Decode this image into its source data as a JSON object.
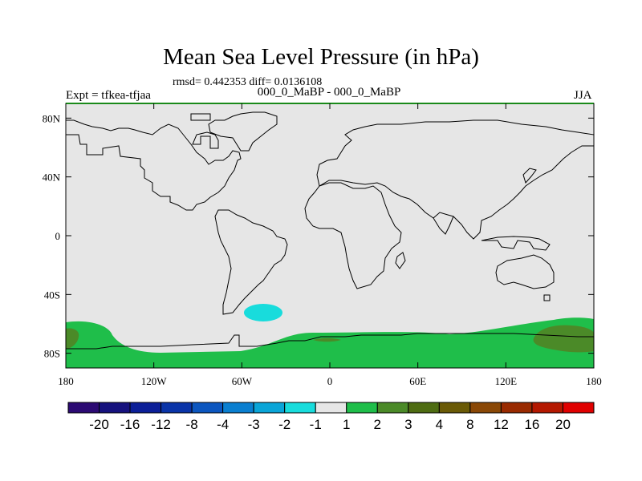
{
  "title": "Mean Sea Level Pressure (in hPa)",
  "stats": "rmsd= 0.442353 diff= 0.0136108",
  "left_label": "Expt = tfkea-tfjaa",
  "center_label": "000_0_MaBP - 000_0_MaBP",
  "right_label": "JJA",
  "map": {
    "projection": "cylindrical equidistant",
    "lon_range": [
      -180,
      180
    ],
    "lat_range": [
      -90,
      90
    ],
    "background_level": "-1 to 1",
    "x_ticks": [
      {
        "value": -180,
        "label": "180"
      },
      {
        "value": -120,
        "label": "120W"
      },
      {
        "value": -60,
        "label": "60W"
      },
      {
        "value": 0,
        "label": "0"
      },
      {
        "value": 60,
        "label": "60E"
      },
      {
        "value": 120,
        "label": "120E"
      },
      {
        "value": 180,
        "label": "180"
      }
    ],
    "y_ticks": [
      {
        "value": 80,
        "label": "80N"
      },
      {
        "value": 40,
        "label": "40N"
      },
      {
        "value": 0,
        "label": "0"
      },
      {
        "value": -40,
        "label": "40S"
      },
      {
        "value": -80,
        "label": "80S"
      }
    ]
  },
  "colorbar": {
    "colors": [
      "#2c0a73",
      "#16127e",
      "#0c1f98",
      "#0a34a8",
      "#0c56bf",
      "#0a7fd0",
      "#0aa5d8",
      "#18dcdc",
      "#e6e6e6",
      "#1fbe4a",
      "#4b8a28",
      "#4e6c12",
      "#6a5a06",
      "#8a4806",
      "#992a00",
      "#b41800",
      "#e00000"
    ],
    "labels": [
      "-20",
      "-16",
      "-12",
      "-8",
      "-4",
      "-3",
      "-2",
      "-1",
      "1",
      "2",
      "3",
      "4",
      "8",
      "12",
      "16",
      "20"
    ]
  }
}
